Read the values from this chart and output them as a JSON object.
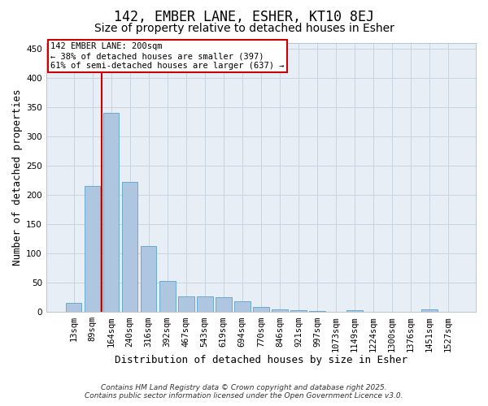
{
  "title": "142, EMBER LANE, ESHER, KT10 8EJ",
  "subtitle": "Size of property relative to detached houses in Esher",
  "xlabel": "Distribution of detached houses by size in Esher",
  "ylabel": "Number of detached properties",
  "categories": [
    "13sqm",
    "89sqm",
    "164sqm",
    "240sqm",
    "316sqm",
    "392sqm",
    "467sqm",
    "543sqm",
    "619sqm",
    "694sqm",
    "770sqm",
    "846sqm",
    "921sqm",
    "997sqm",
    "1073sqm",
    "1149sqm",
    "1224sqm",
    "1300sqm",
    "1376sqm",
    "1451sqm",
    "1527sqm"
  ],
  "values": [
    15,
    215,
    340,
    222,
    113,
    53,
    27,
    26,
    25,
    18,
    8,
    5,
    3,
    2,
    1,
    3,
    1,
    0,
    1,
    4,
    1
  ],
  "bar_color": "#aec6df",
  "bar_edge_color": "#6aaad4",
  "red_line_x": 1.5,
  "red_line_color": "#cc0000",
  "ylim": [
    0,
    460
  ],
  "yticks": [
    0,
    50,
    100,
    150,
    200,
    250,
    300,
    350,
    400,
    450
  ],
  "annotation_text": "142 EMBER LANE: 200sqm\n← 38% of detached houses are smaller (397)\n61% of semi-detached houses are larger (637) →",
  "annotation_box_color": "#ffffff",
  "annotation_box_edge": "#cc0000",
  "grid_color": "#c8d4e0",
  "bg_color": "#e8eef5",
  "footer_line1": "Contains HM Land Registry data © Crown copyright and database right 2025.",
  "footer_line2": "Contains public sector information licensed under the Open Government Licence v3.0.",
  "title_fontsize": 12,
  "subtitle_fontsize": 10,
  "xlabel_fontsize": 9,
  "ylabel_fontsize": 9,
  "tick_fontsize": 7.5,
  "footer_fontsize": 6.5
}
